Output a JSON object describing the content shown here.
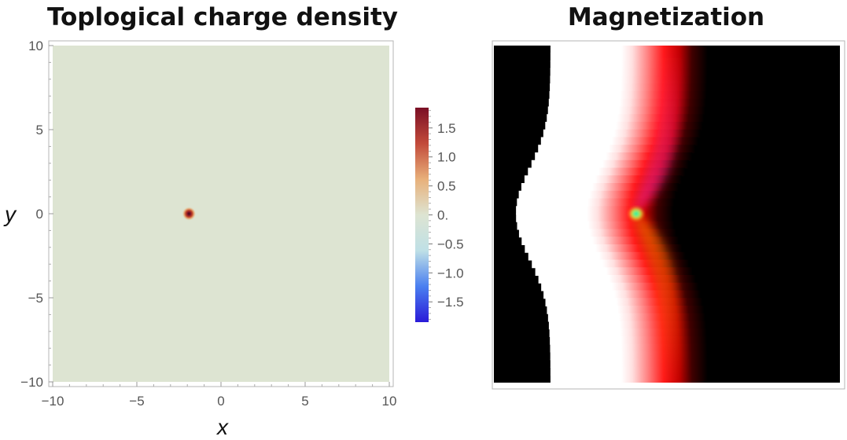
{
  "chart_data": [
    {
      "type": "heatmap",
      "title": "Toplogical charge density",
      "xlabel": "x",
      "ylabel": "y",
      "xlim": [
        -10,
        10
      ],
      "ylim": [
        -10,
        10
      ],
      "xticks": [
        "−10",
        "−5",
        "0",
        "5",
        "10"
      ],
      "xtick_values": [
        -10,
        -5,
        0,
        5,
        10
      ],
      "yticks": [
        "10",
        "5",
        "0",
        "−5",
        "−10"
      ],
      "ytick_values": [
        10,
        5,
        0,
        -5,
        -10
      ],
      "background_value": 0.0,
      "peak": {
        "x": -1.9,
        "y": 0.0,
        "value": 1.8
      },
      "colorbar": {
        "range": [
          -1.85,
          1.85
        ],
        "ticks": [
          "1.5",
          "1.0",
          "0.5",
          "0.",
          "−0.5",
          "−1.0",
          "−1.5"
        ],
        "tick_values": [
          1.5,
          1.0,
          0.5,
          0.0,
          -0.5,
          -1.0,
          -1.5
        ],
        "colors": [
          "#2a1ad8",
          "#4a7ff0",
          "#bfe0e6",
          "#dde4d2",
          "#e8b07a",
          "#c24a3a",
          "#7a0f25"
        ]
      }
    },
    {
      "type": "heatmap",
      "title": "Magnetization",
      "xlim": [
        -10,
        10
      ],
      "ylim": [
        -10,
        10
      ],
      "colors": {
        "left_region": "#ffffff",
        "domain_wall": "#ff1a1a",
        "right_region": "#000000",
        "wall_upper_tint": "#ff33cc",
        "wall_lower_tint": "#ff8800",
        "vortex_core": [
          "#00d0ff",
          "#40ff40",
          "#ffff00"
        ]
      }
    }
  ]
}
